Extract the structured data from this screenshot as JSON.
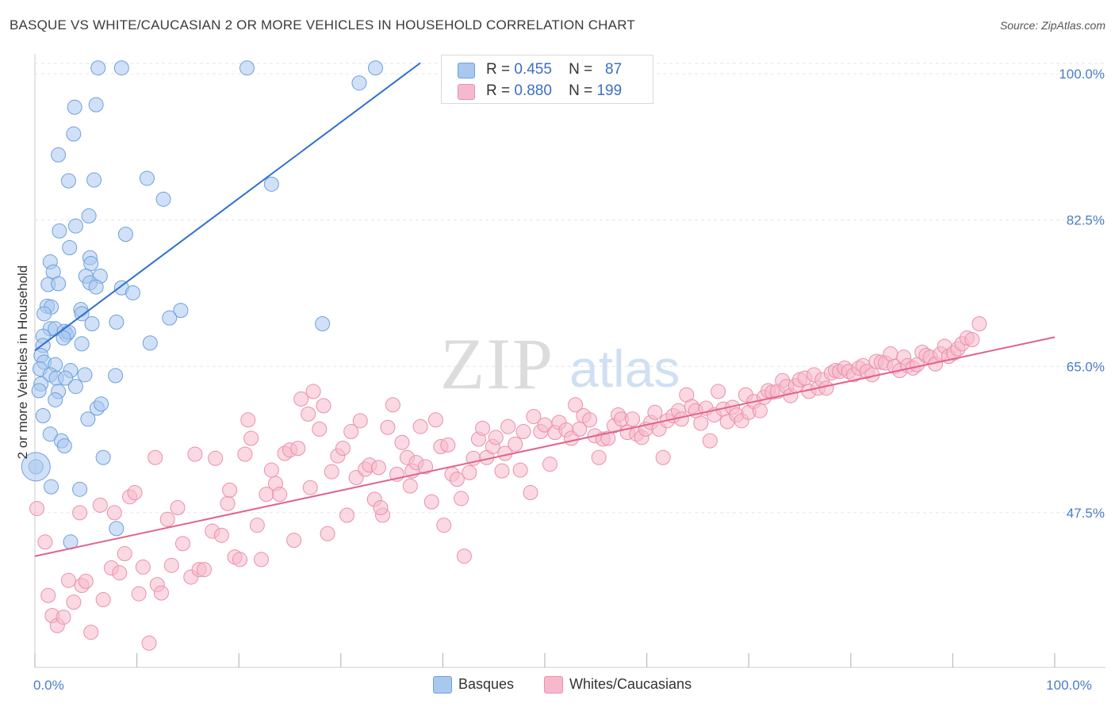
{
  "header": {
    "title": "BASQUE VS WHITE/CAUCASIAN 2 OR MORE VEHICLES IN HOUSEHOLD CORRELATION CHART",
    "source": "Source: ZipAtlas.com"
  },
  "watermark": {
    "zip": "ZIP",
    "atlas": "atlas"
  },
  "legend": {
    "basque": {
      "r_label": "R =",
      "r_value": "0.455",
      "n_label": "N =",
      "n_value": "87"
    },
    "white": {
      "r_label": "R =",
      "r_value": "0.880",
      "n_label": "N =",
      "n_value": "199"
    }
  },
  "bottom_legend": {
    "basque": "Basques",
    "white": "Whites/Caucasians"
  },
  "colors": {
    "basque_fill": "#a9c8f0",
    "basque_stroke": "#6f9fdc",
    "basque_line": "#2e6fd1",
    "white_fill": "#f6b9cb",
    "white_stroke": "#eb8fac",
    "white_line": "#e2628f",
    "tick": "#4a7cc7"
  },
  "chart_data": {
    "type": "scatter",
    "xlabel": "",
    "ylabel": "2 or more Vehicles in Household",
    "xlim": [
      0,
      100
    ],
    "ylim": [
      29,
      102
    ],
    "x_tick_labels": [
      {
        "value": 0,
        "label": "0.0%"
      },
      {
        "value": 100,
        "label": "100.0%"
      }
    ],
    "y_tick_labels": [
      {
        "value": 47.5,
        "label": "47.5%"
      },
      {
        "value": 65.0,
        "label": "65.0%"
      },
      {
        "value": 82.5,
        "label": "82.5%"
      },
      {
        "value": 100.0,
        "label": "100.0%"
      }
    ],
    "grid": true,
    "series": [
      {
        "name": "Basques",
        "trend": [
          [
            0,
            66.9
          ],
          [
            37.8,
            101.3
          ]
        ],
        "points": [
          [
            6.2,
            100.7
          ],
          [
            8.5,
            100.7
          ],
          [
            20.8,
            100.7
          ],
          [
            33.4,
            100.7
          ],
          [
            31.8,
            98.9
          ],
          [
            6.0,
            96.3
          ],
          [
            3.9,
            96.0
          ],
          [
            3.8,
            92.8
          ],
          [
            2.3,
            90.3
          ],
          [
            3.3,
            87.2
          ],
          [
            5.8,
            87.3
          ],
          [
            11.0,
            87.5
          ],
          [
            23.2,
            86.8
          ],
          [
            12.6,
            85.0
          ],
          [
            5.3,
            83.0
          ],
          [
            4.0,
            81.8
          ],
          [
            2.4,
            81.2
          ],
          [
            8.9,
            80.8
          ],
          [
            3.4,
            79.2
          ],
          [
            5.4,
            78.0
          ],
          [
            1.5,
            77.5
          ],
          [
            5.5,
            77.3
          ],
          [
            1.8,
            76.3
          ],
          [
            5.0,
            75.8
          ],
          [
            6.4,
            75.8
          ],
          [
            1.3,
            74.8
          ],
          [
            2.3,
            74.9
          ],
          [
            5.4,
            75.0
          ],
          [
            6.0,
            74.5
          ],
          [
            8.5,
            74.4
          ],
          [
            9.6,
            73.8
          ],
          [
            1.2,
            72.2
          ],
          [
            1.6,
            72.1
          ],
          [
            4.5,
            71.8
          ],
          [
            14.3,
            71.7
          ],
          [
            0.9,
            71.3
          ],
          [
            4.6,
            71.3
          ],
          [
            8.0,
            70.3
          ],
          [
            13.2,
            70.8
          ],
          [
            28.2,
            70.1
          ],
          [
            5.6,
            70.1
          ],
          [
            1.5,
            69.5
          ],
          [
            2.0,
            69.5
          ],
          [
            2.9,
            69.2
          ],
          [
            3.1,
            68.8
          ],
          [
            3.3,
            69.1
          ],
          [
            0.8,
            68.6
          ],
          [
            2.8,
            68.4
          ],
          [
            0.8,
            67.5
          ],
          [
            4.6,
            67.7
          ],
          [
            11.3,
            67.8
          ],
          [
            0.6,
            66.3
          ],
          [
            0.9,
            65.5
          ],
          [
            2.0,
            65.2
          ],
          [
            0.5,
            64.7
          ],
          [
            3.5,
            64.5
          ],
          [
            1.5,
            64.0
          ],
          [
            2.1,
            63.6
          ],
          [
            3.0,
            63.6
          ],
          [
            4.9,
            64.0
          ],
          [
            7.9,
            63.9
          ],
          [
            0.6,
            62.9
          ],
          [
            4.0,
            62.6
          ],
          [
            0.4,
            62.1
          ],
          [
            2.3,
            62.0
          ],
          [
            2.0,
            61.0
          ],
          [
            6.1,
            60.0
          ],
          [
            6.5,
            60.5
          ],
          [
            0.8,
            59.1
          ],
          [
            5.2,
            58.7
          ],
          [
            1.5,
            56.9
          ],
          [
            2.6,
            56.1
          ],
          [
            2.9,
            55.5
          ],
          [
            6.7,
            54.1
          ],
          [
            0.1,
            53.0
          ],
          [
            1.6,
            50.6
          ],
          [
            4.4,
            50.3
          ],
          [
            8.0,
            45.6
          ],
          [
            3.5,
            44.0
          ]
        ]
      },
      {
        "name": "Whites/Caucasians",
        "trend": [
          [
            0,
            42.3
          ],
          [
            100,
            68.5
          ]
        ],
        "points": [
          [
            0.2,
            48.0
          ],
          [
            1.0,
            44.0
          ],
          [
            1.3,
            37.6
          ],
          [
            1.7,
            35.2
          ],
          [
            2.2,
            34.0
          ],
          [
            2.8,
            35.0
          ],
          [
            3.3,
            39.4
          ],
          [
            3.8,
            36.8
          ],
          [
            4.4,
            47.5
          ],
          [
            4.6,
            38.8
          ],
          [
            5.0,
            39.3
          ],
          [
            5.5,
            33.2
          ],
          [
            6.4,
            48.4
          ],
          [
            6.7,
            37.1
          ],
          [
            7.5,
            40.9
          ],
          [
            7.8,
            47.5
          ],
          [
            8.3,
            40.3
          ],
          [
            8.8,
            42.6
          ],
          [
            9.3,
            49.4
          ],
          [
            9.8,
            49.9
          ],
          [
            10.2,
            37.8
          ],
          [
            10.6,
            41.0
          ],
          [
            11.2,
            31.9
          ],
          [
            11.8,
            54.1
          ],
          [
            12.0,
            38.9
          ],
          [
            12.4,
            37.9
          ],
          [
            13.0,
            46.7
          ],
          [
            13.4,
            41.2
          ],
          [
            14.0,
            48.1
          ],
          [
            14.5,
            43.8
          ],
          [
            15.3,
            39.8
          ],
          [
            15.7,
            54.5
          ],
          [
            16.1,
            40.7
          ],
          [
            16.6,
            40.7
          ],
          [
            17.4,
            45.3
          ],
          [
            17.7,
            54.0
          ],
          [
            18.3,
            44.8
          ],
          [
            18.9,
            48.6
          ],
          [
            19.1,
            50.2
          ],
          [
            19.6,
            42.2
          ],
          [
            20.1,
            41.9
          ],
          [
            20.6,
            54.5
          ],
          [
            20.9,
            58.6
          ],
          [
            21.2,
            56.4
          ],
          [
            21.8,
            46.0
          ],
          [
            22.2,
            41.9
          ],
          [
            22.7,
            49.7
          ],
          [
            23.2,
            52.6
          ],
          [
            23.6,
            51.0
          ],
          [
            24.0,
            49.7
          ],
          [
            24.5,
            54.6
          ],
          [
            25.0,
            55.0
          ],
          [
            25.4,
            44.2
          ],
          [
            25.8,
            55.2
          ],
          [
            26.1,
            61.1
          ],
          [
            26.8,
            59.3
          ],
          [
            27.3,
            62.0
          ],
          [
            27.9,
            57.5
          ],
          [
            28.3,
            60.3
          ],
          [
            28.7,
            45.0
          ],
          [
            29.1,
            52.4
          ],
          [
            29.7,
            54.3
          ],
          [
            30.2,
            55.2
          ],
          [
            30.6,
            47.2
          ],
          [
            31.0,
            57.2
          ],
          [
            31.5,
            51.7
          ],
          [
            31.9,
            58.5
          ],
          [
            32.4,
            52.7
          ],
          [
            32.8,
            53.2
          ],
          [
            33.3,
            49.1
          ],
          [
            33.7,
            52.9
          ],
          [
            34.1,
            47.2
          ],
          [
            34.6,
            57.7
          ],
          [
            35.1,
            60.4
          ],
          [
            35.5,
            52.1
          ],
          [
            36.0,
            55.9
          ],
          [
            36.5,
            54.1
          ],
          [
            37.0,
            52.5
          ],
          [
            37.4,
            53.5
          ],
          [
            37.8,
            57.8
          ],
          [
            38.3,
            53.0
          ],
          [
            38.9,
            48.8
          ],
          [
            39.3,
            58.6
          ],
          [
            39.8,
            55.4
          ],
          [
            40.1,
            46.0
          ],
          [
            40.5,
            55.6
          ],
          [
            40.9,
            52.1
          ],
          [
            41.4,
            51.5
          ],
          [
            41.8,
            49.2
          ],
          [
            42.1,
            42.3
          ],
          [
            42.6,
            52.3
          ],
          [
            43.0,
            54.0
          ],
          [
            43.5,
            56.3
          ],
          [
            43.9,
            57.6
          ],
          [
            44.3,
            54.1
          ],
          [
            44.9,
            55.4
          ],
          [
            45.2,
            56.5
          ],
          [
            45.8,
            52.5
          ],
          [
            46.1,
            54.6
          ],
          [
            46.4,
            57.8
          ],
          [
            47.1,
            55.7
          ],
          [
            47.6,
            52.6
          ],
          [
            47.9,
            57.2
          ],
          [
            48.6,
            49.9
          ],
          [
            48.9,
            59.0
          ],
          [
            49.6,
            57.2
          ],
          [
            50.0,
            58.0
          ],
          [
            50.5,
            53.3
          ],
          [
            51.0,
            57.1
          ],
          [
            51.4,
            58.3
          ],
          [
            52.1,
            57.4
          ],
          [
            52.6,
            56.4
          ],
          [
            53.0,
            60.4
          ],
          [
            53.4,
            57.5
          ],
          [
            53.8,
            59.1
          ],
          [
            54.4,
            58.6
          ],
          [
            54.9,
            56.7
          ],
          [
            55.3,
            54.1
          ],
          [
            55.7,
            56.3
          ],
          [
            56.2,
            56.4
          ],
          [
            56.8,
            57.9
          ],
          [
            57.2,
            59.2
          ],
          [
            57.5,
            58.7
          ],
          [
            58.1,
            57.1
          ],
          [
            58.6,
            58.7
          ],
          [
            59.0,
            56.9
          ],
          [
            59.5,
            56.5
          ],
          [
            59.9,
            57.5
          ],
          [
            60.4,
            58.3
          ],
          [
            60.8,
            59.5
          ],
          [
            61.2,
            57.5
          ],
          [
            61.6,
            54.1
          ],
          [
            62.0,
            58.5
          ],
          [
            62.6,
            59.1
          ],
          [
            63.1,
            59.7
          ],
          [
            63.4,
            58.7
          ],
          [
            63.9,
            61.6
          ],
          [
            64.4,
            60.2
          ],
          [
            64.8,
            59.7
          ],
          [
            65.3,
            58.2
          ],
          [
            65.8,
            60.0
          ],
          [
            66.2,
            56.1
          ],
          [
            66.6,
            59.2
          ],
          [
            67.0,
            62.0
          ],
          [
            67.5,
            59.9
          ],
          [
            67.9,
            58.4
          ],
          [
            68.4,
            60.1
          ],
          [
            68.8,
            59.2
          ],
          [
            69.3,
            58.5
          ],
          [
            69.7,
            61.6
          ],
          [
            70.0,
            59.5
          ],
          [
            70.5,
            60.8
          ],
          [
            71.1,
            59.7
          ],
          [
            71.5,
            61.3
          ],
          [
            71.9,
            62.1
          ],
          [
            72.3,
            61.9
          ],
          [
            72.8,
            62.0
          ],
          [
            73.3,
            63.3
          ],
          [
            73.7,
            62.6
          ],
          [
            74.1,
            61.5
          ],
          [
            74.6,
            62.7
          ],
          [
            75.0,
            63.4
          ],
          [
            75.5,
            63.6
          ],
          [
            75.9,
            62.0
          ],
          [
            76.4,
            64.0
          ],
          [
            76.8,
            62.4
          ],
          [
            77.2,
            63.4
          ],
          [
            77.6,
            62.4
          ],
          [
            78.1,
            64.2
          ],
          [
            78.5,
            64.5
          ],
          [
            78.9,
            64.4
          ],
          [
            79.4,
            64.8
          ],
          [
            79.8,
            64.4
          ],
          [
            80.3,
            64.0
          ],
          [
            80.8,
            64.8
          ],
          [
            81.2,
            65.1
          ],
          [
            81.6,
            64.4
          ],
          [
            82.1,
            64.0
          ],
          [
            82.5,
            65.6
          ],
          [
            83.0,
            65.5
          ],
          [
            83.4,
            65.4
          ],
          [
            83.9,
            66.5
          ],
          [
            84.3,
            65.0
          ],
          [
            84.8,
            64.5
          ],
          [
            85.2,
            66.1
          ],
          [
            85.6,
            65.1
          ],
          [
            86.1,
            64.8
          ],
          [
            86.5,
            65.2
          ],
          [
            87.0,
            66.7
          ],
          [
            87.4,
            66.3
          ],
          [
            87.8,
            66.1
          ],
          [
            88.3,
            65.3
          ],
          [
            88.8,
            66.5
          ],
          [
            89.2,
            67.4
          ],
          [
            89.6,
            66.2
          ],
          [
            90.1,
            66.6
          ],
          [
            90.5,
            67.1
          ],
          [
            90.9,
            67.7
          ],
          [
            91.4,
            68.4
          ],
          [
            91.9,
            68.2
          ],
          [
            92.6,
            70.1
          ],
          [
            33.9,
            48.1
          ],
          [
            27.0,
            50.5
          ],
          [
            36.8,
            50.7
          ]
        ]
      }
    ]
  }
}
